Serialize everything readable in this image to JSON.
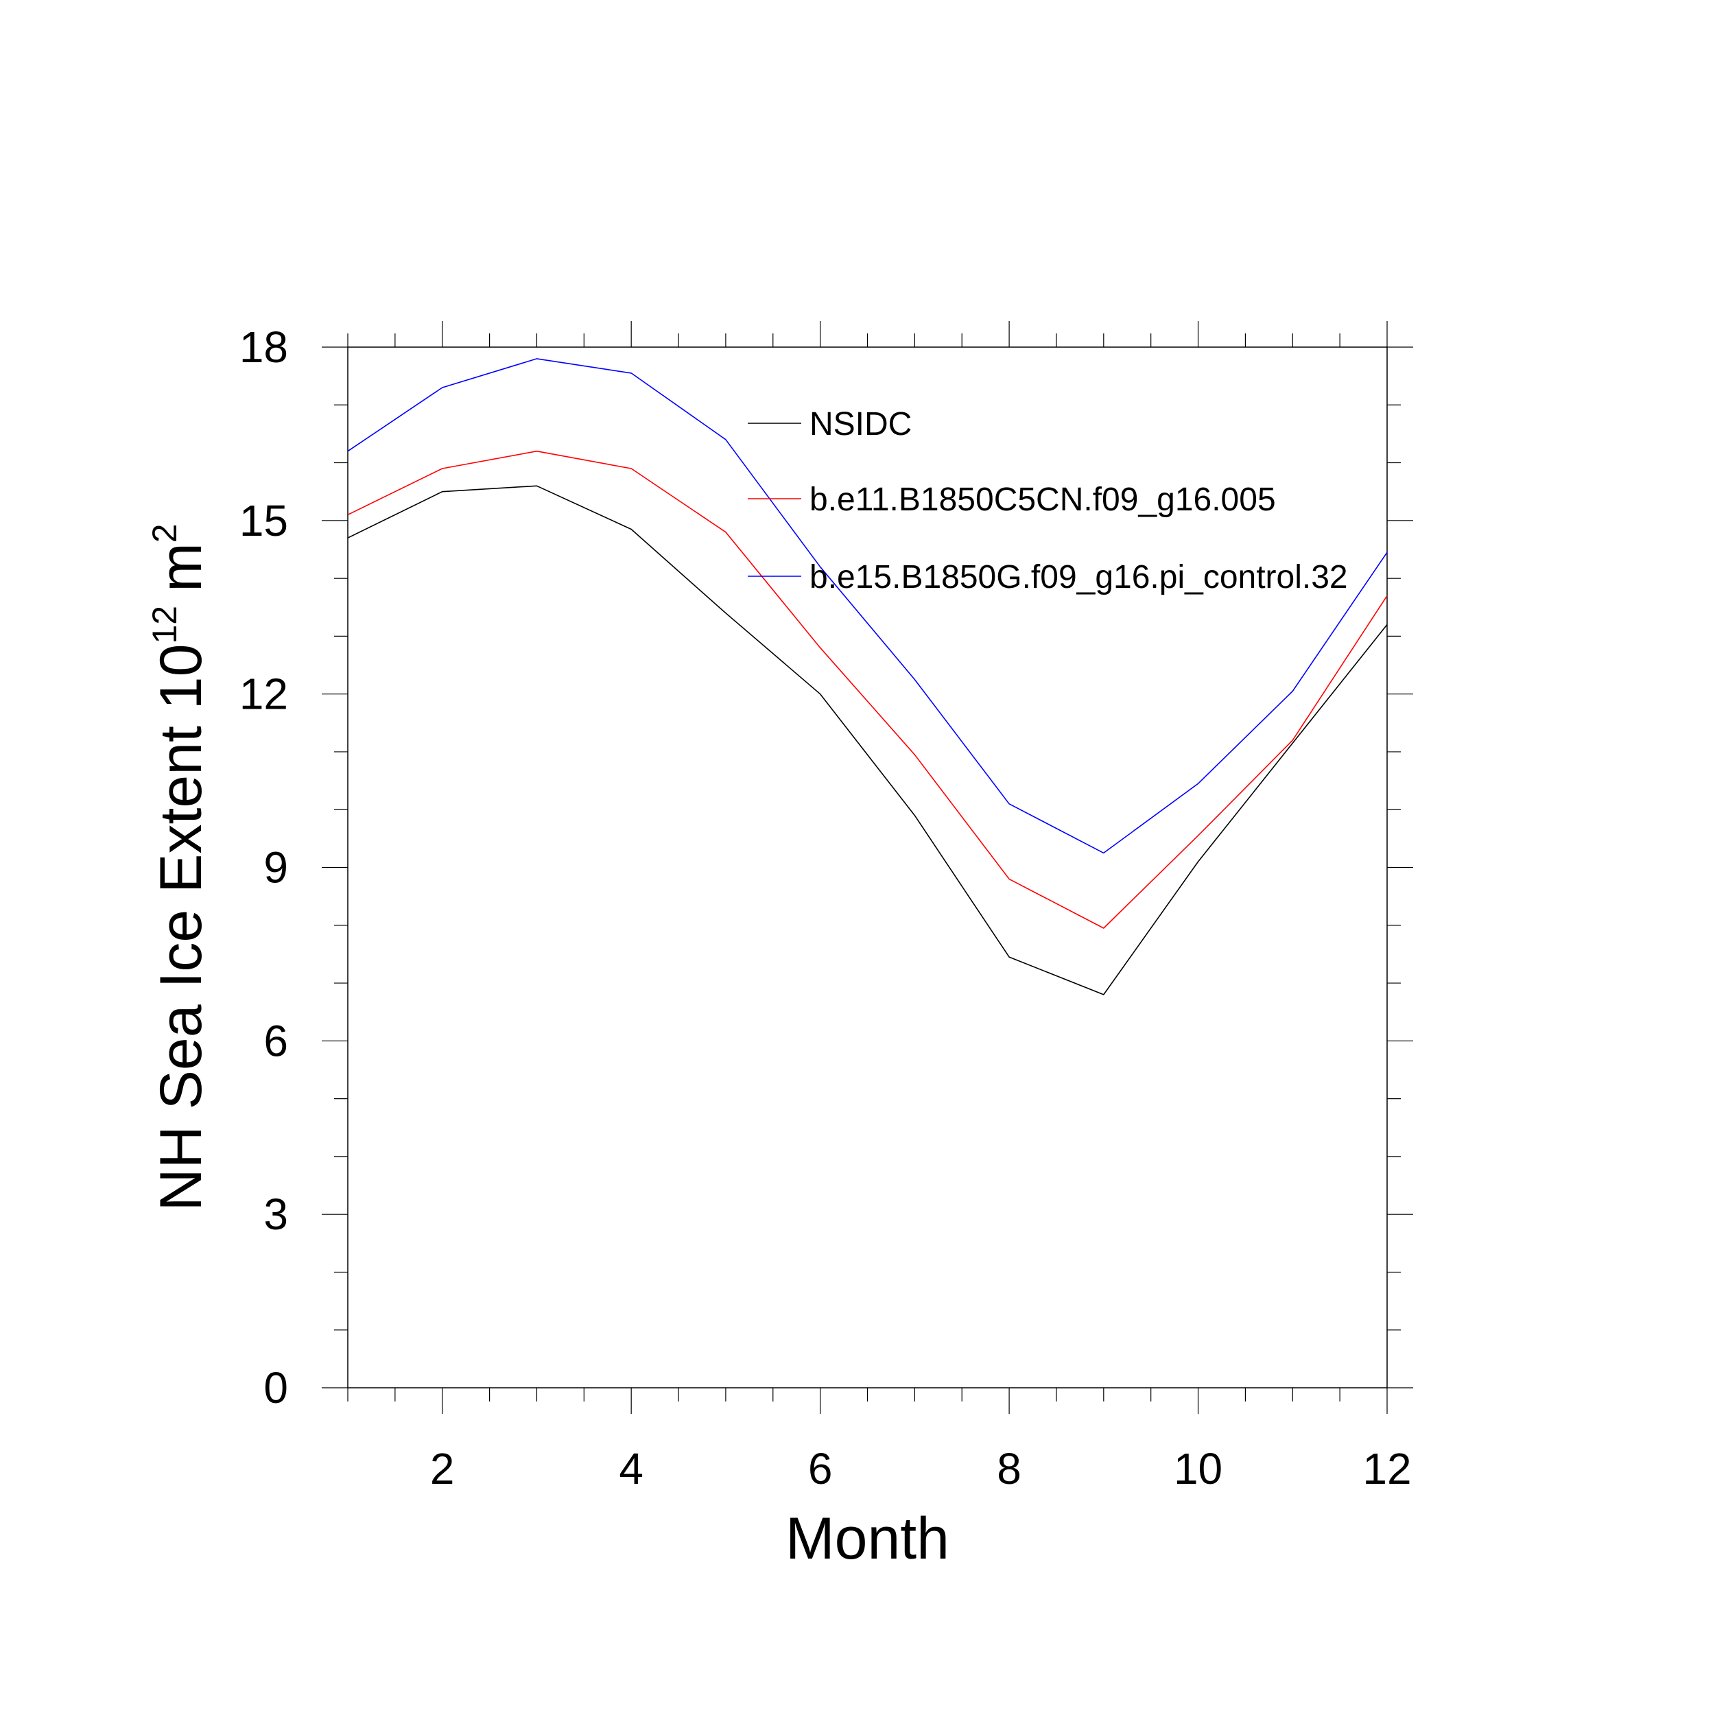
{
  "chart_data": {
    "type": "line",
    "title": "",
    "xlabel": "Month",
    "ylabel": {
      "text": "NH Sea Ice Extent 10",
      "exponent": "12",
      "unit": "m",
      "unit_exponent": "2"
    },
    "xlim": [
      1,
      12
    ],
    "ylim": [
      0,
      18
    ],
    "x_ticks": [
      "2",
      "4",
      "6",
      "8",
      "10",
      "12"
    ],
    "y_ticks": [
      "0",
      "3",
      "6",
      "9",
      "12",
      "15",
      "18"
    ],
    "grid": false,
    "legend_position": "top-center",
    "x": [
      1,
      2,
      3,
      4,
      5,
      6,
      7,
      8,
      9,
      10,
      11,
      12
    ],
    "series": [
      {
        "name": "NSIDC",
        "color": "#000000",
        "values": [
          14.7,
          15.5,
          15.6,
          14.85,
          13.4,
          12.0,
          9.9,
          7.45,
          6.8,
          9.1,
          11.15,
          13.2
        ]
      },
      {
        "name": "b.e11.B1850C5CN.f09_g16.005",
        "color": "#ff0000",
        "values": [
          15.1,
          15.9,
          16.2,
          15.9,
          14.8,
          12.8,
          10.95,
          8.8,
          7.95,
          9.55,
          11.2,
          13.7
        ]
      },
      {
        "name": "b.e15.B1850G.f09_g16.pi_control.32",
        "color": "#0000ff",
        "values": [
          16.2,
          17.3,
          17.8,
          17.55,
          16.4,
          14.2,
          12.25,
          10.1,
          9.25,
          10.45,
          12.05,
          14.45
        ]
      }
    ]
  }
}
